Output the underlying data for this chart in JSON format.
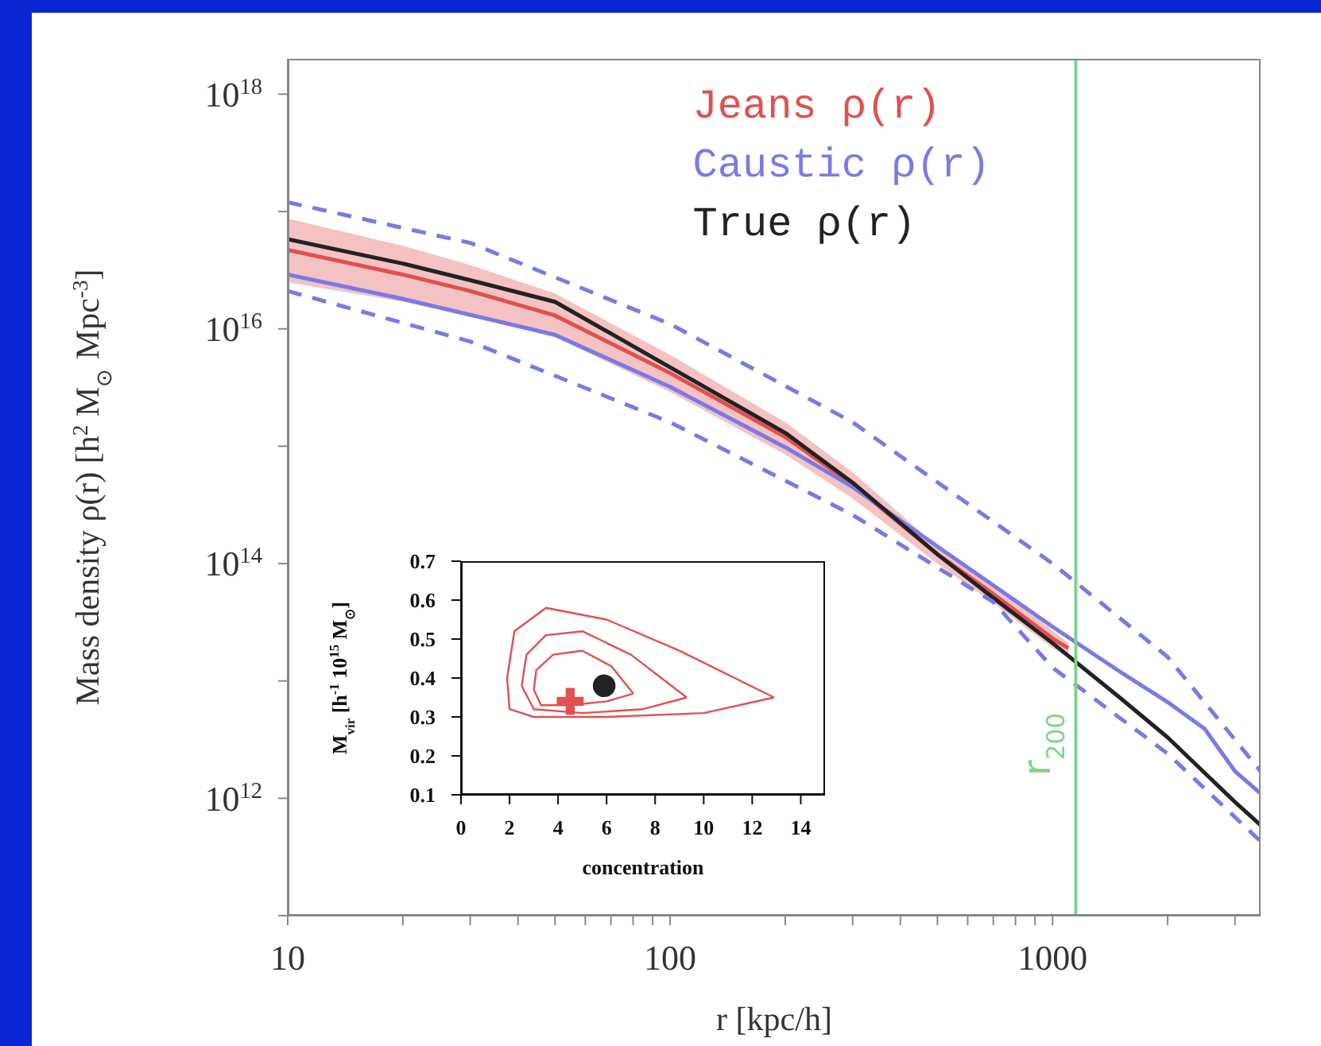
{
  "chart_data": [
    {
      "type": "line",
      "xlabel": "r [kpc/h]",
      "ylabel": "Mass density ρ(r) [h$^{2}$ M$_{⊙}$ Mpc$^{-3}$]",
      "log": "xy",
      "legend": "top right",
      "xlim": [
        10,
        3500
      ],
      "ylim": [
        100000000000.0,
        2e+18
      ],
      "xticks": [
        10,
        {
          "value": 20,
          "label": null
        },
        {
          "value": 30,
          "label": null
        },
        {
          "value": 40,
          "label": null
        },
        {
          "value": 50,
          "label": null
        },
        {
          "value": 60,
          "label": null
        },
        {
          "value": 70,
          "label": null
        },
        {
          "value": 80,
          "label": null
        },
        {
          "value": 90,
          "label": null
        },
        100,
        {
          "value": 200,
          "label": null
        },
        {
          "value": 300,
          "label": null
        },
        {
          "value": 400,
          "label": null
        },
        {
          "value": 500,
          "label": null
        },
        {
          "value": 600,
          "label": null
        },
        {
          "value": 700,
          "label": null
        },
        {
          "value": 800,
          "label": null
        },
        {
          "value": 900,
          "label": null
        },
        1000,
        {
          "value": 2000,
          "label": null
        },
        {
          "value": 3000,
          "label": null
        }
      ],
      "yticks": [
        {
          "value": 100000000000.0,
          "label": null
        },
        {
          "value": 1000000000000.0,
          "label": "10$^{12}$"
        },
        {
          "value": 10000000000000.0,
          "label": null
        },
        {
          "value": 100000000000000.0,
          "label": "10$^{14}$"
        },
        {
          "value": 1000000000000000.0,
          "label": null
        },
        {
          "value": 1e+16,
          "label": "10$^{16}$"
        },
        {
          "value": 1e+17,
          "label": null
        },
        {
          "value": 1e+18,
          "label": "10$^{18}$"
        }
      ],
      "ref_lines": [
        {
          "axis": "x",
          "value": 1150,
          "label": "r$_{200}$",
          "color": "#7fd38f"
        }
      ],
      "series": [
        {
          "name": "Jeans ρ(r)",
          "color": "#e05050",
          "x": [
            10,
            20,
            30,
            50,
            100,
            200,
            300,
            500,
            700,
            1000,
            1100
          ],
          "values": [
            4.7e+16,
            2.9e+16,
            2.1e+16,
            1.3e+16,
            4200000000000000.0,
            1200000000000000.0,
            470000000000000.0,
            120000000000000.0,
            55000000000000.0,
            23000000000000.0,
            19000000000000.0
          ],
          "lower": [
            2.5e+16,
            1.7e+16,
            1.3e+16,
            8500000000000000.0,
            2900000000000000.0,
            850000000000000.0,
            360000000000000.0,
            100000000000000.0,
            46000000000000.0,
            19000000000000.0,
            16000000000000.0
          ],
          "upper": [
            8.7e+16,
            5.1e+16,
            3.5e+16,
            2e+16,
            6000000000000000.0,
            1600000000000000.0,
            600000000000000.0,
            140000000000000.0,
            66000000000000.0,
            27000000000000.0,
            21000000000000.0
          ]
        },
        {
          "name": "Caustic ρ(r)",
          "color": "#7a7ae6",
          "x": [
            10,
            20,
            50,
            100,
            200,
            300,
            500,
            1000,
            1500,
            2000,
            2500,
            3000,
            3500
          ],
          "values": [
            2.9e+16,
            1.8e+16,
            8900000000000000.0,
            3200000000000000.0,
            980000000000000.0,
            450000000000000.0,
            140000000000000.0,
            29000000000000.0,
            12000000000000.0,
            6600000000000.0,
            3900000000000.0,
            1700000000000.0,
            1100000000000.0
          ]
        },
        {
          "name": "True ρ(r)",
          "color": "#222222",
          "x": [
            10,
            20,
            30,
            50,
            100,
            200,
            300,
            500,
            700,
            1000,
            1500,
            2000,
            3000,
            3500
          ],
          "values": [
            5.8e+16,
            3.6e+16,
            2.6e+16,
            1.7e+16,
            4700000000000000.0,
            1300000000000000.0,
            490000000000000.0,
            120000000000000.0,
            51000000000000.0,
            21000000000000.0,
            7200000000000.0,
            3300000000000.0,
            930000000000.0,
            590000000000.0
          ]
        },
        {
          "color": "#7a7ae6",
          "line_style": "dashed",
          "x": [
            10,
            30,
            100,
            300,
            1000,
            2000,
            3500
          ],
          "values": [
            1.2e+17,
            5.4e+16,
            1.1e+16,
            1600000000000000.0,
            100000000000000.0,
            16000000000000.0,
            1700000000000.0
          ]
        },
        {
          "color": "#7a7ae6",
          "line_style": "dashed",
          "x": [
            10,
            30,
            100,
            300,
            700,
            1000,
            2000,
            3500
          ],
          "values": [
            2.1e+16,
            7800000000000000.0,
            1600000000000000.0,
            260000000000000.0,
            47000000000000.0,
            13000000000000.0,
            2400000000000.0,
            430000000000.0
          ]
        }
      ]
    },
    {
      "type": "line",
      "xlabel": "concentration",
      "ylabel": "M$_{vir}$ [h$^{-1}$ 10$^{15}$ M$_{⊙}$]",
      "xlim": [
        0,
        15
      ],
      "ylim": [
        0.1,
        0.7
      ],
      "xticks": [
        0,
        2,
        4,
        6,
        8,
        10,
        12,
        14
      ],
      "yticks": [
        0.1,
        0.2,
        0.3,
        0.4,
        0.5,
        0.6,
        0.7
      ],
      "series": [
        {
          "color": "#e05050",
          "x": [
            3.0,
            3.1,
            3.8,
            5.0,
            6.2,
            7.1,
            null,
            3.0,
            3.3,
            4.5,
            6.0,
            7.1
          ],
          "values": [
            0.37,
            0.42,
            0.46,
            0.47,
            0.43,
            0.36,
            null,
            0.37,
            0.33,
            0.33,
            0.34,
            0.36
          ]
        },
        {
          "color": "#e05050",
          "x": [
            2.5,
            2.7,
            3.5,
            5.0,
            7.0,
            9.3,
            null,
            2.5,
            3.0,
            5.0,
            7.5,
            9.3
          ],
          "values": [
            0.38,
            0.46,
            0.51,
            0.52,
            0.46,
            0.35,
            null,
            0.38,
            0.32,
            0.31,
            0.32,
            0.35
          ]
        },
        {
          "color": "#e05050",
          "x": [
            1.9,
            2.2,
            3.5,
            6.0,
            9.0,
            12.9,
            null,
            1.9,
            2.0,
            3.0,
            6.0,
            10.0,
            12.9
          ],
          "values": [
            0.4,
            0.52,
            0.58,
            0.55,
            0.47,
            0.35,
            null,
            0.4,
            0.32,
            0.3,
            0.3,
            0.31,
            0.35
          ]
        },
        {
          "type": "scatter",
          "marker": "circle",
          "color": "#222222",
          "x": [
            5.9
          ],
          "values": [
            0.38
          ]
        },
        {
          "type": "scatter",
          "marker": "cross",
          "color": "#e05050",
          "x": [
            4.5
          ],
          "values": [
            0.34
          ]
        }
      ]
    }
  ]
}
